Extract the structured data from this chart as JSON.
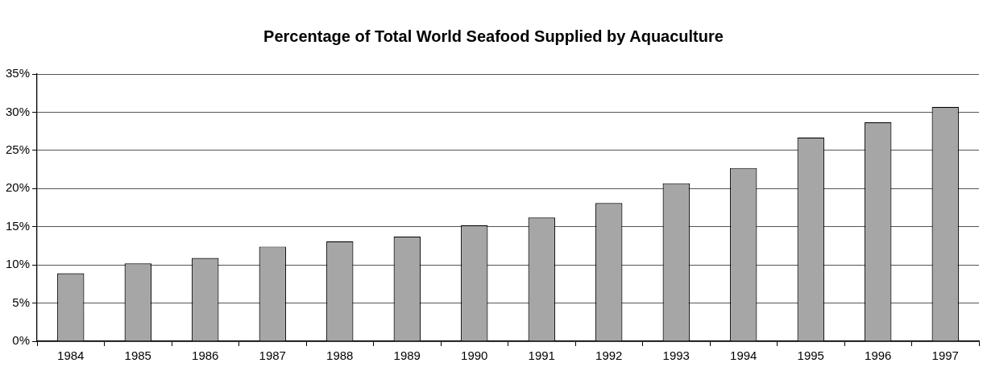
{
  "chart_data": {
    "type": "bar",
    "title": "Percentage of Total World Seafood Supplied by Aquaculture",
    "categories": [
      "1984",
      "1985",
      "1986",
      "1987",
      "1988",
      "1989",
      "1990",
      "1991",
      "1992",
      "1993",
      "1994",
      "1995",
      "1996",
      "1997"
    ],
    "values": [
      8.9,
      10.2,
      10.9,
      12.4,
      13.1,
      13.7,
      15.2,
      16.2,
      18.1,
      20.7,
      22.7,
      26.7,
      28.7,
      30.7
    ],
    "color": "#a6a6a6",
    "ylim": [
      0,
      35
    ],
    "yticks": [
      {
        "value": 0,
        "label": "0%"
      },
      {
        "value": 5,
        "label": "5%"
      },
      {
        "value": 10,
        "label": "10%"
      },
      {
        "value": 15,
        "label": "15%"
      },
      {
        "value": 20,
        "label": "20%"
      },
      {
        "value": 25,
        "label": "25%"
      },
      {
        "value": 30,
        "label": "30%"
      },
      {
        "value": 35,
        "label": "35%"
      }
    ],
    "grid": "y",
    "legend": false
  }
}
